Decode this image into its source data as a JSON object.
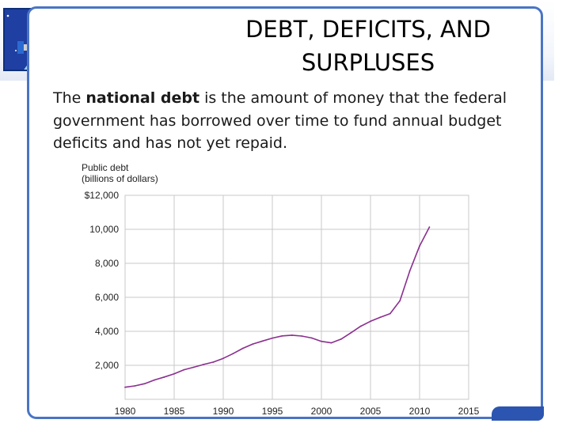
{
  "slide": {
    "title_line1": "DEBT, DEFICITS, AND",
    "title_line2": "SURPLUSES",
    "body_prefix": "The ",
    "body_bold": "national debt",
    "body_suffix": " is the amount of money that the federal government has borrowed over time to fund annual budget deficits and has not yet repaid."
  },
  "chart_data": {
    "type": "line",
    "title": "Public debt",
    "subtitle": "(billions of dollars)",
    "x": [
      1980,
      1981,
      1982,
      1983,
      1984,
      1985,
      1986,
      1987,
      1988,
      1989,
      1990,
      1991,
      1992,
      1993,
      1994,
      1995,
      1996,
      1997,
      1998,
      1999,
      2000,
      2001,
      2002,
      2003,
      2004,
      2005,
      2006,
      2007,
      2008,
      2009,
      2010,
      2011
    ],
    "series": [
      {
        "values": [
          710,
          790,
          920,
          1140,
          1310,
          1500,
          1740,
          1890,
          2050,
          2190,
          2410,
          2690,
          3000,
          3250,
          3430,
          3600,
          3730,
          3770,
          3720,
          3610,
          3410,
          3320,
          3540,
          3910,
          4300,
          4590,
          4830,
          5040,
          5800,
          7550,
          9020,
          10130
        ],
        "color": "#8b2f8f"
      }
    ],
    "xlim": [
      1980,
      2015
    ],
    "ylim": [
      0,
      12000
    ],
    "x_ticks": [
      "1980",
      "1985",
      "1990",
      "1995",
      "2000",
      "2005",
      "2010",
      "2015"
    ],
    "y_ticks": [
      "$12,000",
      "10,000",
      "8,000",
      "6,000",
      "4,000",
      "2,000"
    ],
    "grid": true,
    "colors": {
      "frame": "#4a74c4",
      "grid": "#c8c8c8",
      "line": "#8b2f8f",
      "globe": "#1f3fa2"
    }
  }
}
